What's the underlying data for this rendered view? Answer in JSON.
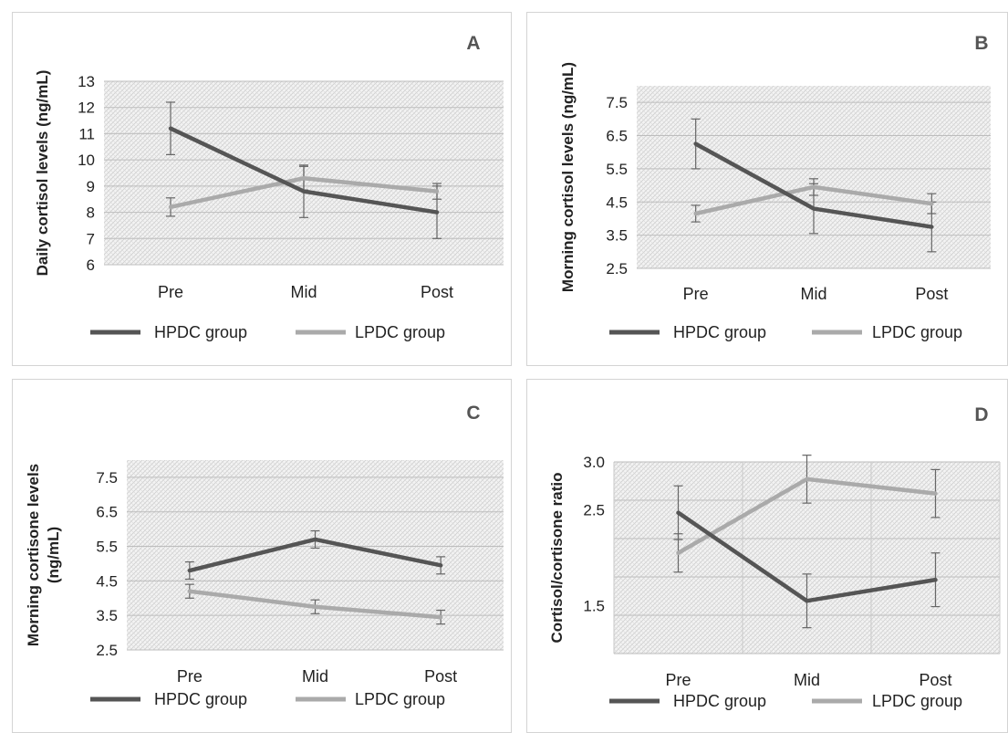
{
  "chart_data": [
    {
      "type": "line",
      "title": "A",
      "ylabel": "Daily cortisol levels (ng/mL)",
      "categories": [
        "Pre",
        "Mid",
        "Post"
      ],
      "ylim": [
        6,
        13
      ],
      "yticks": [
        "6",
        "7",
        "8",
        "9",
        "10",
        "11",
        "12",
        "13"
      ],
      "yticks_values": [
        6,
        7,
        8,
        9,
        10,
        11,
        12,
        13
      ],
      "series": [
        {
          "name": "HPDC group",
          "color": "#555555",
          "values": [
            11.2,
            8.8,
            8.0
          ],
          "err": [
            1.0,
            1.0,
            1.0
          ]
        },
        {
          "name": "LPDC group",
          "color": "#aaaaaa",
          "values": [
            8.2,
            9.3,
            8.8
          ],
          "err": [
            0.35,
            0.45,
            0.3
          ]
        }
      ],
      "legend": "bottom"
    },
    {
      "type": "line",
      "title": "B",
      "ylabel": "Morning cortisol levels (ng/mL)",
      "categories": [
        "Pre",
        "Mid",
        "Post"
      ],
      "ylim": [
        2.5,
        8.0
      ],
      "yticks": [
        "2.5",
        "3.5",
        "4.5",
        "5.5",
        "6.5",
        "7.5"
      ],
      "yticks_values": [
        2.5,
        3.5,
        4.5,
        5.5,
        6.5,
        7.5
      ],
      "series": [
        {
          "name": "HPDC group",
          "color": "#555555",
          "values": [
            6.25,
            4.3,
            3.75
          ],
          "err": [
            0.75,
            0.75,
            0.75
          ]
        },
        {
          "name": "LPDC group",
          "color": "#aaaaaa",
          "values": [
            4.15,
            4.95,
            4.45
          ],
          "err": [
            0.25,
            0.25,
            0.3
          ]
        }
      ],
      "legend": "bottom"
    },
    {
      "type": "line",
      "title": "C",
      "ylabel": "Morning cortisone levels (ng/mL)",
      "ylabel_lines": [
        "Morning  cortisone levels",
        "(ng/mL)"
      ],
      "categories": [
        "Pre",
        "Mid",
        "Post"
      ],
      "ylim": [
        2.5,
        8.0
      ],
      "yticks": [
        "2.5",
        "3.5",
        "4.5",
        "5.5",
        "6.5",
        "7.5"
      ],
      "yticks_values": [
        2.5,
        3.5,
        4.5,
        5.5,
        6.5,
        7.5
      ],
      "series": [
        {
          "name": "HPDC group",
          "color": "#555555",
          "values": [
            4.8,
            5.7,
            4.95
          ],
          "err": [
            0.25,
            0.25,
            0.25
          ]
        },
        {
          "name": "LPDC group",
          "color": "#aaaaaa",
          "values": [
            4.2,
            3.75,
            3.45
          ],
          "err": [
            0.2,
            0.2,
            0.2
          ]
        }
      ],
      "legend": "bottom"
    },
    {
      "type": "line",
      "title": "D",
      "ylabel": "Cortisol/cortisone ratio",
      "categories": [
        "Pre",
        "Mid",
        "Post"
      ],
      "ylim": [
        1.0,
        3.0
      ],
      "yticks": [
        "1.5",
        "2.5",
        "3.0"
      ],
      "yticks_values": [
        1.5,
        2.5,
        3.0
      ],
      "gridlines": [
        1.0,
        1.4,
        1.8,
        2.2,
        2.6,
        3.0
      ],
      "series": [
        {
          "name": "HPDC group",
          "color": "#555555",
          "values": [
            2.47,
            1.55,
            1.77
          ],
          "err": [
            0.28,
            0.28,
            0.28
          ]
        },
        {
          "name": "LPDC group",
          "color": "#aaaaaa",
          "values": [
            2.05,
            2.82,
            2.67
          ],
          "err": [
            0.2,
            0.25,
            0.25
          ]
        }
      ],
      "legend": "bottom"
    }
  ]
}
